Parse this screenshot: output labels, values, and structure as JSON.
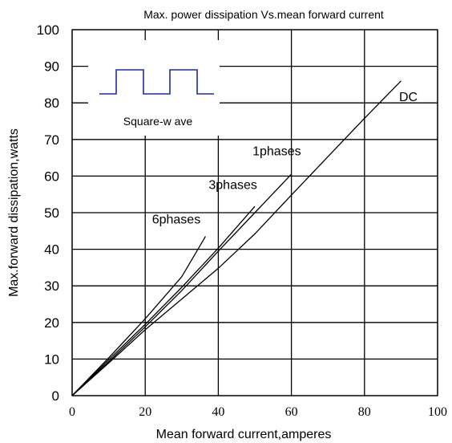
{
  "chart_data": {
    "type": "line",
    "title": "Max. power dissipation Vs.mean forward current",
    "xlabel": "Mean forward current,amperes",
    "ylabel": "Max.forward dissipation,watts",
    "xlim": [
      0,
      100
    ],
    "ylim": [
      0,
      100
    ],
    "x_ticks": [
      0,
      20,
      40,
      60,
      80,
      100
    ],
    "y_ticks": [
      0,
      10,
      20,
      30,
      40,
      50,
      60,
      70,
      80,
      90,
      100
    ],
    "grid": true,
    "series": [
      {
        "name": "DC",
        "x": [
          0,
          10,
          20,
          30,
          40,
          50,
          60,
          70,
          80,
          90
        ],
        "y": [
          0,
          8.9,
          18,
          26.4,
          34.8,
          44.2,
          54.8,
          65.3,
          75.8,
          86
        ]
      },
      {
        "name": "1phases",
        "x": [
          0,
          10,
          20,
          30,
          40,
          50,
          60
        ],
        "y": [
          0,
          9.3,
          18.8,
          28.7,
          39.5,
          50,
          60.5
        ]
      },
      {
        "name": "3phases",
        "x": [
          0,
          10,
          20,
          30,
          40,
          50
        ],
        "y": [
          0,
          9.8,
          19.5,
          29.6,
          40.3,
          51.7
        ]
      },
      {
        "name": "6phases",
        "x": [
          0,
          10,
          20,
          30,
          36.5
        ],
        "y": [
          0,
          10.3,
          21,
          32.5,
          43.5
        ]
      }
    ],
    "series_labels": [
      {
        "text": "DC",
        "x": 92,
        "y": 80.5
      },
      {
        "text": "1phases",
        "x": 56,
        "y": 65.7
      },
      {
        "text": "3phases",
        "x": 44,
        "y": 56.5
      },
      {
        "text": "6phases",
        "x": 28.5,
        "y": 47
      }
    ],
    "legend": {
      "label": "Square-w ave",
      "position": "top-left"
    }
  }
}
